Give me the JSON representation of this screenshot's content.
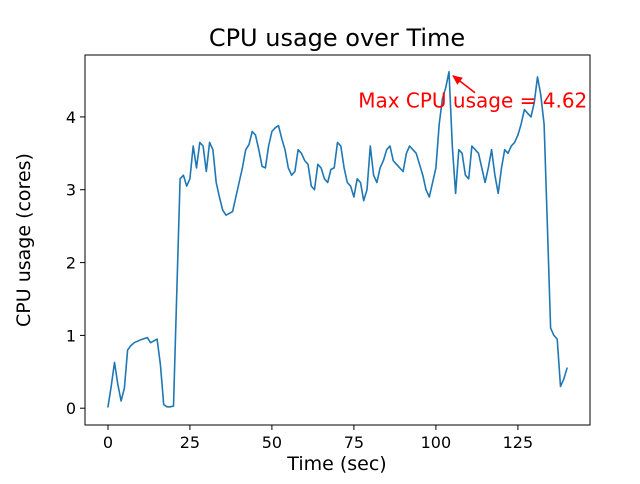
{
  "chart_data": {
    "type": "line",
    "title": "CPU usage over Time",
    "xlabel": "Time (sec)",
    "ylabel": "CPU usage (cores)",
    "xlim": [
      -7,
      147
    ],
    "ylim": [
      -0.23,
      4.85
    ],
    "x_ticks": [
      0,
      25,
      50,
      75,
      100,
      125
    ],
    "y_ticks": [
      0,
      1,
      2,
      3,
      4
    ],
    "line_color": "#1f77b4",
    "grid": false,
    "annotation": {
      "text": "Max CPU usage = 4.62",
      "color": "#ff0000",
      "xy": [
        104,
        4.62
      ],
      "text_xy": [
        76.3,
        4.13
      ]
    },
    "x": [
      0,
      1,
      2,
      3,
      4,
      5,
      6,
      7,
      8,
      10,
      12,
      13,
      15,
      16,
      17,
      18,
      19,
      20,
      21,
      22,
      23,
      24,
      25,
      26,
      27,
      28,
      29,
      30,
      31,
      32,
      33,
      34,
      35,
      36,
      38,
      40,
      41,
      42,
      43,
      44,
      45,
      46,
      47,
      48,
      49,
      50,
      51,
      52,
      53,
      54,
      55,
      56,
      57,
      58,
      59,
      60,
      61,
      62,
      63,
      64,
      65,
      66,
      67,
      68,
      69,
      70,
      71,
      72,
      73,
      74,
      75,
      76,
      77,
      78,
      79,
      80,
      81,
      82,
      83,
      84,
      85,
      86,
      87,
      88,
      89,
      90,
      91,
      92,
      93,
      94,
      95,
      96,
      97,
      98,
      99,
      100,
      101,
      102,
      103,
      104,
      105,
      106,
      107,
      108,
      109,
      110,
      111,
      112,
      113,
      114,
      115,
      116,
      117,
      118,
      119,
      120,
      121,
      122,
      123,
      124,
      125,
      126,
      127,
      128,
      129,
      130,
      131,
      132,
      133,
      134,
      135,
      136,
      137,
      138,
      139,
      140
    ],
    "y": [
      0.02,
      0.3,
      0.63,
      0.33,
      0.1,
      0.28,
      0.8,
      0.86,
      0.9,
      0.94,
      0.97,
      0.9,
      0.95,
      0.6,
      0.05,
      0.02,
      0.02,
      0.03,
      1.6,
      3.15,
      3.2,
      3.05,
      3.15,
      3.6,
      3.3,
      3.65,
      3.6,
      3.25,
      3.65,
      3.55,
      3.1,
      2.9,
      2.72,
      2.65,
      2.7,
      3.1,
      3.3,
      3.55,
      3.62,
      3.8,
      3.75,
      3.55,
      3.32,
      3.3,
      3.6,
      3.8,
      3.85,
      3.88,
      3.7,
      3.55,
      3.3,
      3.2,
      3.25,
      3.55,
      3.5,
      3.4,
      3.35,
      3.05,
      3.0,
      3.35,
      3.3,
      3.15,
      3.1,
      3.28,
      3.3,
      3.65,
      3.6,
      3.3,
      3.1,
      3.05,
      2.9,
      3.15,
      3.1,
      2.85,
      3.0,
      3.6,
      3.2,
      3.1,
      3.3,
      3.4,
      3.55,
      3.6,
      3.4,
      3.35,
      3.3,
      3.25,
      3.5,
      3.6,
      3.55,
      3.5,
      3.35,
      3.2,
      3.0,
      2.9,
      3.1,
      3.3,
      3.9,
      4.25,
      4.4,
      4.62,
      3.6,
      2.95,
      3.55,
      3.5,
      3.2,
      3.15,
      3.6,
      3.55,
      3.5,
      3.3,
      3.1,
      3.3,
      3.55,
      3.2,
      2.95,
      3.3,
      3.55,
      3.5,
      3.6,
      3.65,
      3.75,
      3.9,
      4.1,
      4.05,
      4.0,
      4.2,
      4.55,
      4.3,
      3.9,
      2.5,
      1.1,
      1.0,
      0.95,
      0.3,
      0.4,
      0.55
    ]
  }
}
